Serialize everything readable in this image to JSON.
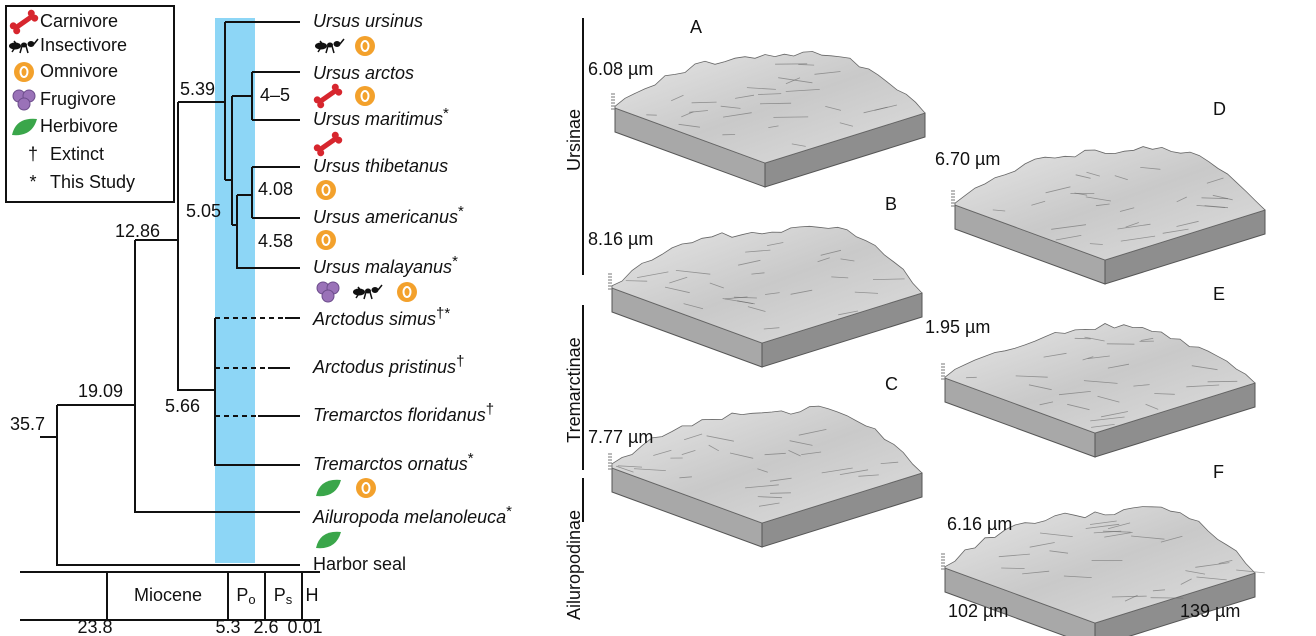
{
  "legend": {
    "items": [
      {
        "label": "Carnivore"
      },
      {
        "label": "Insectivore"
      },
      {
        "label": "Omnivore"
      },
      {
        "label": "Frugivore"
      },
      {
        "label": "Herbivore"
      },
      {
        "symbol": "†",
        "label": "Extinct"
      },
      {
        "symbol": "*",
        "label": "This Study"
      }
    ]
  },
  "tree": {
    "taxa": [
      {
        "name": "Ursus ursinus"
      },
      {
        "name": "Ursus arctos"
      },
      {
        "name": "Ursus maritimus",
        "mark": "*"
      },
      {
        "name": "Ursus thibetanus"
      },
      {
        "name": "Ursus americanus",
        "mark": "*"
      },
      {
        "name": "Ursus malayanus",
        "mark": "*"
      },
      {
        "name": "Arctodus simus",
        "mark": "†*"
      },
      {
        "name": "Arctodus pristinus",
        "mark": "†"
      },
      {
        "name": "Tremarctos floridanus",
        "mark": "†"
      },
      {
        "name": "Tremarctos ornatus",
        "mark": "*"
      },
      {
        "name": "Ailuropoda melanoleuca",
        "mark": "*"
      },
      {
        "name": "Harbor seal"
      }
    ],
    "node_ages": [
      "35.7",
      "19.09",
      "12.86",
      "5.39",
      "5.05",
      "5.66",
      "4–5",
      "4.08",
      "4.58"
    ]
  },
  "timescale": {
    "epochs": [
      {
        "label": "Miocene"
      },
      {
        "label": "P",
        "sub": "o"
      },
      {
        "label": "P",
        "sub": "s"
      },
      {
        "label": "H"
      }
    ],
    "boundaries": [
      "23.8",
      "5.3",
      "2.6",
      "0.01"
    ]
  },
  "subfamilies": [
    "Ursinae",
    "Tremarctinae",
    "Ailuropodinae"
  ],
  "panels": [
    {
      "letter": "A",
      "height": "6.08 µm"
    },
    {
      "letter": "B",
      "height": "8.16 µm"
    },
    {
      "letter": "C",
      "height": "7.77 µm"
    },
    {
      "letter": "D",
      "height": "6.70 µm"
    },
    {
      "letter": "E",
      "height": "1.95 µm"
    },
    {
      "letter": "F",
      "height": "6.16 µm"
    }
  ],
  "scale": [
    "102 µm",
    "139 µm"
  ]
}
